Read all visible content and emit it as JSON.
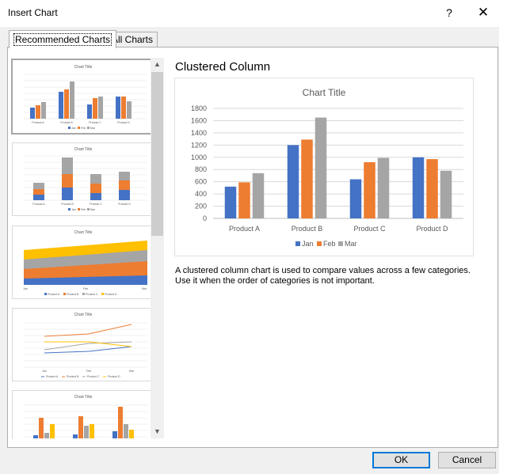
{
  "dialog": {
    "title": "Insert Chart",
    "help_glyph": "?",
    "close_glyph": "✕"
  },
  "tabs": [
    {
      "label": "Recommended Charts",
      "active": true
    },
    {
      "label": "All Charts",
      "active": false
    }
  ],
  "thumbnails": [
    {
      "title": "Chart Title",
      "kind": "clustered-column",
      "legend": [
        "Jan",
        "Feb",
        "Mar"
      ]
    },
    {
      "title": "Chart Title",
      "kind": "stacked-column",
      "legend": [
        "Jan",
        "Feb",
        "Mar"
      ]
    },
    {
      "title": "Chart Title",
      "kind": "stacked-area",
      "categories": [
        "Jan",
        "Feb",
        "Mar"
      ],
      "legend": [
        "Product A",
        "Product B",
        "Product C",
        "Product D"
      ]
    },
    {
      "title": "Chart Title",
      "kind": "line",
      "categories": [
        "Jan",
        "Feb",
        "Mar"
      ],
      "legend": [
        "Product A",
        "Product B",
        "Product C",
        "Product D"
      ]
    },
    {
      "title": "Chart Title",
      "kind": "clustered-column-transposed"
    }
  ],
  "preview": {
    "heading": "Clustered Column",
    "description_lines": [
      "A clustered column chart is used to compare values across a few categories.",
      "Use it when the order of categories is not important."
    ]
  },
  "colors": {
    "Jan": "#4472c4",
    "Feb": "#ed7d31",
    "Mar": "#a5a5a5",
    "ProductD": "#ffc000",
    "accent": "#0078d7"
  },
  "chart_data": {
    "type": "bar",
    "title": "Chart Title",
    "categories": [
      "Product A",
      "Product B",
      "Product C",
      "Product D"
    ],
    "series": [
      {
        "name": "Jan",
        "values": [
          520,
          1200,
          640,
          1000
        ]
      },
      {
        "name": "Feb",
        "values": [
          590,
          1290,
          920,
          970
        ]
      },
      {
        "name": "Mar",
        "values": [
          740,
          1650,
          990,
          780
        ]
      }
    ],
    "ylim": [
      0,
      1800
    ],
    "yticks": [
      0,
      200,
      400,
      600,
      800,
      1000,
      1200,
      1400,
      1600,
      1800
    ],
    "grid": true,
    "legend": "bottom"
  },
  "buttons": {
    "ok": "OK",
    "cancel": "Cancel"
  },
  "scroll": {
    "up_glyph": "▲",
    "down_glyph": "▼"
  }
}
